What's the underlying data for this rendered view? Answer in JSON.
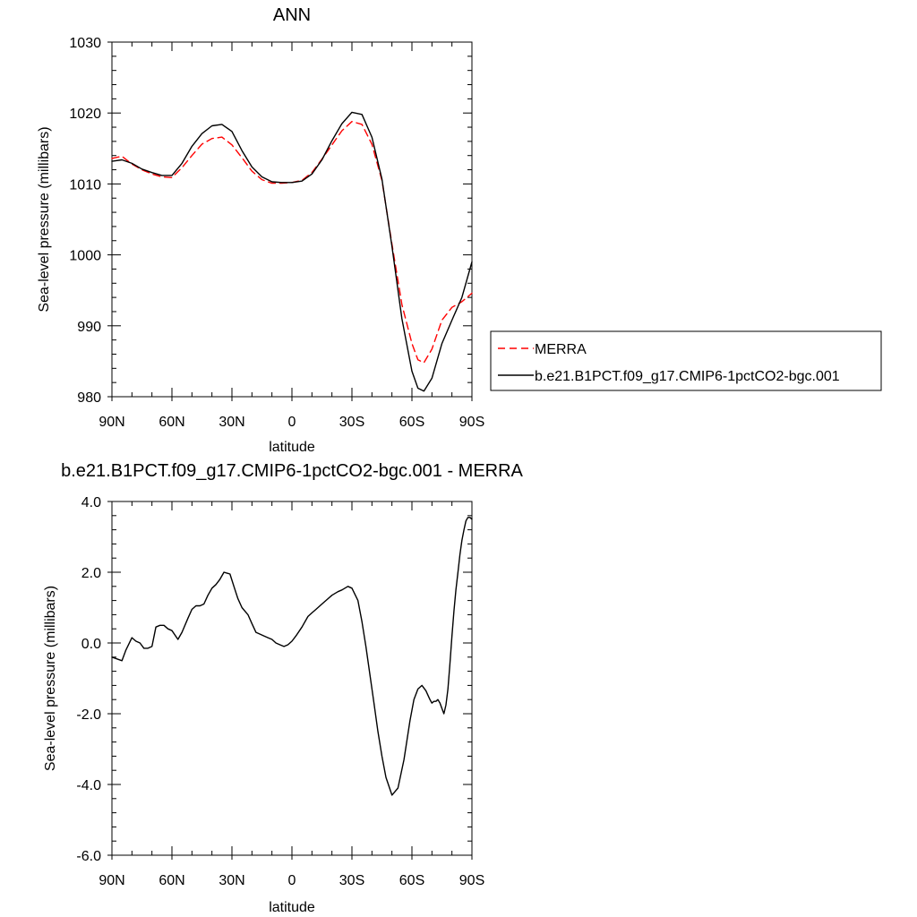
{
  "chart_data": [
    {
      "type": "line",
      "title": "ANN",
      "xlabel": "latitude",
      "ylabel": "Sea-level pressure (millibars)",
      "xlim": [
        90,
        -90
      ],
      "ylim": [
        980,
        1030
      ],
      "x_ticks": [
        90,
        60,
        30,
        0,
        -30,
        -60,
        -90
      ],
      "x_tick_labels": [
        "90N",
        "60N",
        "30N",
        "0",
        "30S",
        "60S",
        "90S"
      ],
      "y_ticks": [
        980,
        990,
        1000,
        1010,
        1020,
        1030
      ],
      "y_tick_labels": [
        "980",
        "990",
        "1000",
        "1010",
        "1020",
        "1030"
      ],
      "grid": false,
      "legend_position": "right",
      "series": [
        {
          "name": "MERRA",
          "color": "#ff0000",
          "dash": true,
          "x": [
            90,
            85,
            80,
            75,
            70,
            65,
            60,
            55,
            50,
            45,
            40,
            35,
            30,
            25,
            20,
            15,
            10,
            5,
            0,
            -5,
            -10,
            -15,
            -20,
            -25,
            -30,
            -35,
            -40,
            -45,
            -50,
            -55,
            -60,
            -63,
            -66,
            -70,
            -75,
            -80,
            -85,
            -90
          ],
          "y": [
            1013.6,
            1013.9,
            1012.8,
            1012.0,
            1011.4,
            1011.0,
            1010.9,
            1012.3,
            1014.0,
            1015.6,
            1016.4,
            1016.6,
            1015.5,
            1013.7,
            1011.8,
            1010.6,
            1010.1,
            1010.1,
            1010.2,
            1010.5,
            1011.6,
            1013.5,
            1015.5,
            1017.5,
            1018.8,
            1018.4,
            1015.6,
            1010.5,
            1001.5,
            993.0,
            987.5,
            985.2,
            984.8,
            986.7,
            990.8,
            992.6,
            993.4,
            994.6
          ]
        },
        {
          "name": "b.e21.B1PCT.f09_g17.CMIP6-1pctCO2-bgc.001",
          "color": "#000000",
          "dash": false,
          "x": [
            90,
            85,
            80,
            75,
            70,
            65,
            60,
            55,
            50,
            45,
            40,
            35,
            30,
            25,
            20,
            15,
            10,
            5,
            0,
            -5,
            -10,
            -15,
            -20,
            -25,
            -30,
            -35,
            -40,
            -45,
            -50,
            -55,
            -60,
            -63,
            -66,
            -70,
            -75,
            -80,
            -85,
            -90
          ],
          "y": [
            1013.2,
            1013.4,
            1012.9,
            1012.1,
            1011.6,
            1011.2,
            1011.2,
            1012.9,
            1015.3,
            1017.1,
            1018.2,
            1018.4,
            1017.4,
            1014.7,
            1012.4,
            1011.0,
            1010.3,
            1010.2,
            1010.2,
            1010.4,
            1011.4,
            1013.4,
            1016.1,
            1018.5,
            1020.1,
            1019.8,
            1016.6,
            1010.7,
            1001.2,
            991.0,
            983.6,
            981.2,
            980.8,
            982.6,
            987.5,
            990.8,
            994.0,
            999.0
          ]
        }
      ]
    },
    {
      "type": "line",
      "title": "b.e21.B1PCT.f09_g17.CMIP6-1pctCO2-bgc.001 - MERRA",
      "xlabel": "latitude",
      "ylabel": "Sea-level pressure (millibars)",
      "xlim": [
        90,
        -90
      ],
      "ylim": [
        -6.0,
        4.0
      ],
      "x_ticks": [
        90,
        60,
        30,
        0,
        -30,
        -60,
        -90
      ],
      "x_tick_labels": [
        "90N",
        "60N",
        "30N",
        "0",
        "30S",
        "60S",
        "90S"
      ],
      "y_ticks": [
        -6.0,
        -4.0,
        -2.0,
        0.0,
        2.0,
        4.0
      ],
      "y_tick_labels": [
        "-6.0",
        "-4.0",
        "-2.0",
        "0.0",
        "2.0",
        "4.0"
      ],
      "grid": false,
      "series": [
        {
          "color": "#000000",
          "dash": false,
          "x": [
            90,
            85,
            83,
            80,
            78,
            76,
            74,
            72,
            70,
            68,
            66,
            64,
            62,
            60,
            57,
            55,
            52,
            50,
            48,
            46,
            44,
            42,
            40,
            38,
            36,
            34,
            31,
            29,
            27,
            25,
            22,
            20,
            18,
            16,
            14,
            12,
            10,
            8,
            6,
            4,
            2,
            0,
            -2,
            -5,
            -8,
            -10,
            -12,
            -15,
            -18,
            -20,
            -23,
            -25,
            -28,
            -30,
            -33,
            -35,
            -37,
            -39,
            -41,
            -43,
            -45,
            -47,
            -50,
            -53,
            -56,
            -59,
            -61,
            -63,
            -65,
            -67,
            -69,
            -70,
            -71,
            -72,
            -73,
            -74,
            -75,
            -76,
            -77,
            -78,
            -79,
            -80,
            -81,
            -82,
            -83,
            -84,
            -85,
            -86,
            -87,
            -88,
            -89,
            -90
          ],
          "y": [
            -0.4,
            -0.5,
            -0.2,
            0.15,
            0.05,
            0.0,
            -0.15,
            -0.15,
            -0.1,
            0.45,
            0.5,
            0.5,
            0.4,
            0.35,
            0.1,
            0.3,
            0.7,
            0.95,
            1.05,
            1.05,
            1.1,
            1.35,
            1.55,
            1.65,
            1.8,
            2.0,
            1.95,
            1.6,
            1.25,
            1.0,
            0.8,
            0.55,
            0.3,
            0.25,
            0.2,
            0.15,
            0.1,
            0.0,
            -0.05,
            -0.1,
            -0.05,
            0.05,
            0.2,
            0.45,
            0.75,
            0.85,
            0.95,
            1.1,
            1.25,
            1.35,
            1.45,
            1.5,
            1.6,
            1.55,
            1.2,
            0.6,
            -0.1,
            -0.9,
            -1.7,
            -2.5,
            -3.2,
            -3.8,
            -4.3,
            -4.1,
            -3.3,
            -2.2,
            -1.6,
            -1.3,
            -1.2,
            -1.35,
            -1.6,
            -1.7,
            -1.65,
            -1.65,
            -1.6,
            -1.7,
            -1.85,
            -2.0,
            -1.75,
            -1.3,
            -0.6,
            0.2,
            0.9,
            1.5,
            2.0,
            2.5,
            2.9,
            3.2,
            3.45,
            3.55,
            3.55,
            3.5
          ]
        }
      ]
    }
  ]
}
